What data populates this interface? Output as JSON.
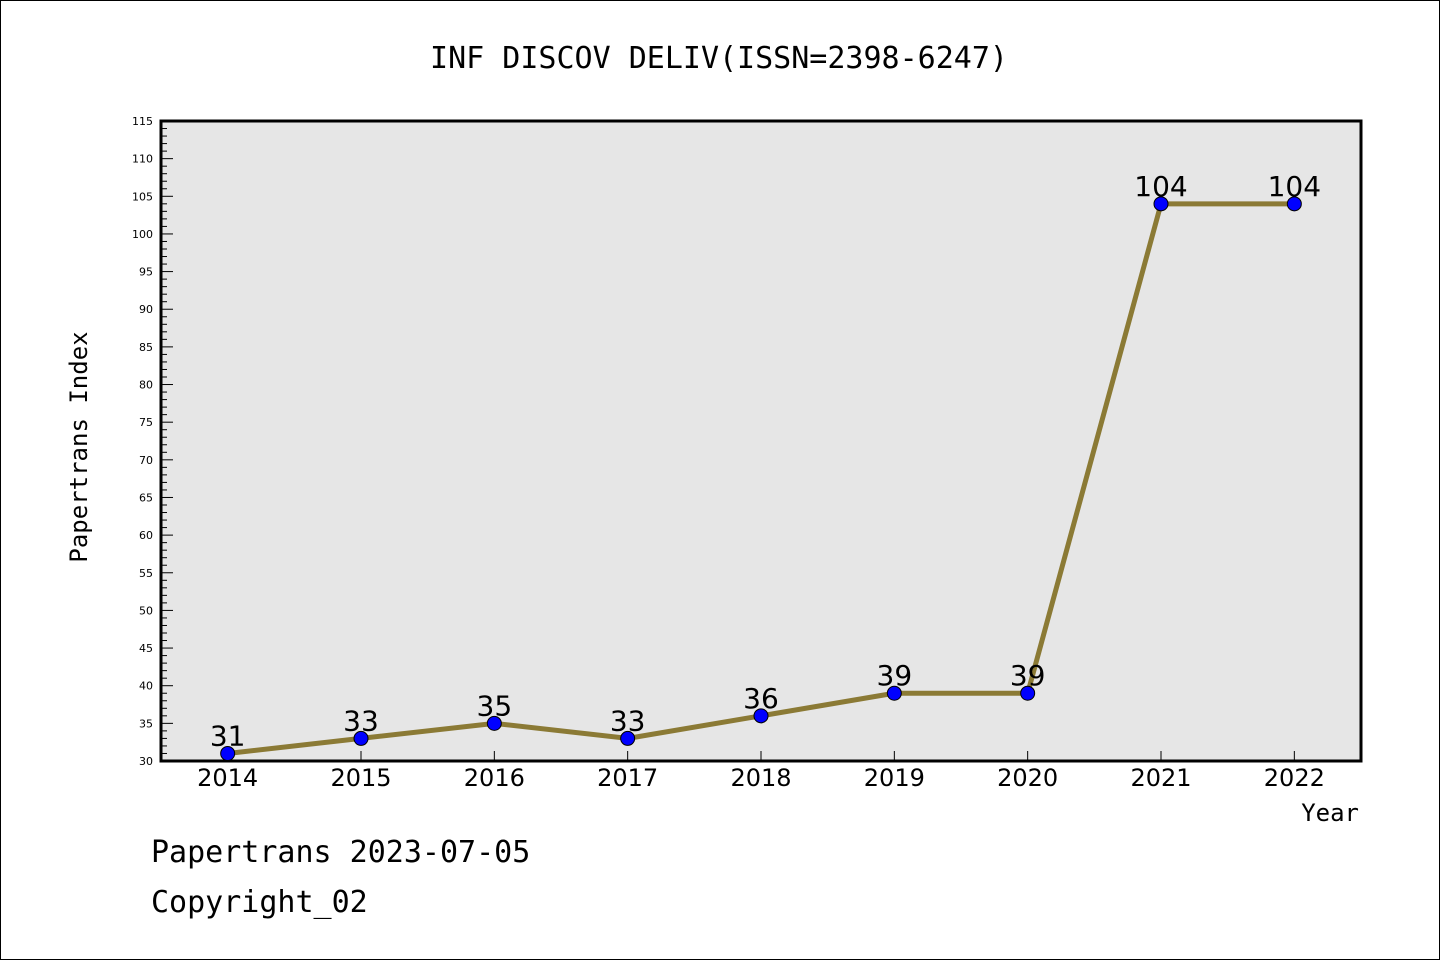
{
  "chart_data": {
    "type": "line",
    "title": "INF DISCOV DELIV(ISSN=2398-6247)",
    "xlabel": "Year",
    "ylabel": "Papertrans Index",
    "categories": [
      "2014",
      "2015",
      "2016",
      "2017",
      "2018",
      "2019",
      "2020",
      "2021",
      "2022"
    ],
    "series": [
      {
        "values": [
          31,
          33,
          35,
          33,
          36,
          39,
          39,
          104,
          104
        ]
      }
    ],
    "data_labels": [
      "31",
      "33",
      "35",
      "33",
      "36",
      "39",
      "39",
      "104",
      "104"
    ],
    "ylim": [
      30,
      115
    ],
    "y_ticks": [
      "30",
      "35",
      "40",
      "45",
      "50",
      "55",
      "60",
      "65",
      "70",
      "75",
      "80",
      "85",
      "90",
      "95",
      "100",
      "105",
      "110",
      "115"
    ],
    "y_minor_step": 1,
    "grid": false,
    "legend": "none",
    "colors": {
      "line": "#8b7a35",
      "marker": "#0000ff",
      "plot_background": "#e6e6e6",
      "axis": "#000000"
    }
  },
  "footer": {
    "date_text": "Papertrans 2023-07-05",
    "copyright_text": "Copyright_02"
  }
}
